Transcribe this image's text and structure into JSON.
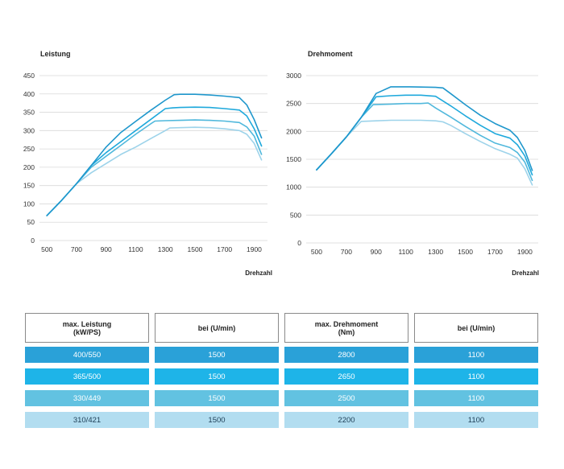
{
  "chart_data": [
    {
      "type": "line",
      "title": "Leistung",
      "xlabel": "Drehzahl",
      "ylabel": "",
      "xlim": [
        450,
        1990
      ],
      "ylim": [
        0,
        450
      ],
      "xticks": [
        500,
        700,
        900,
        1100,
        1300,
        1500,
        1700,
        1900
      ],
      "yticks": [
        0,
        50,
        100,
        150,
        200,
        250,
        300,
        350,
        400,
        450
      ],
      "grid": true,
      "series": [
        {
          "color": "#1f97cc",
          "x": [
            500,
            600,
            700,
            800,
            900,
            1000,
            1100,
            1200,
            1300,
            1360,
            1400,
            1500,
            1600,
            1700,
            1800,
            1850,
            1900,
            1950
          ],
          "y": [
            68,
            110,
            155,
            205,
            255,
            295,
            325,
            355,
            383,
            398,
            399,
            399,
            397,
            394,
            390,
            370,
            330,
            280
          ]
        },
        {
          "color": "#1fa9dc",
          "x": [
            500,
            600,
            700,
            800,
            900,
            1000,
            1100,
            1200,
            1300,
            1350,
            1400,
            1500,
            1600,
            1700,
            1800,
            1850,
            1900,
            1950
          ],
          "y": [
            68,
            110,
            155,
            205,
            240,
            270,
            300,
            330,
            360,
            362,
            363,
            364,
            363,
            360,
            356,
            340,
            305,
            258
          ]
        },
        {
          "color": "#50b8dc",
          "x": [
            500,
            600,
            700,
            800,
            900,
            1000,
            1100,
            1200,
            1230,
            1300,
            1400,
            1500,
            1600,
            1700,
            1800,
            1850,
            1900,
            1950
          ],
          "y": [
            68,
            110,
            155,
            200,
            230,
            260,
            290,
            318,
            326,
            327,
            328,
            329,
            328,
            326,
            322,
            310,
            285,
            235
          ]
        },
        {
          "color": "#9dd3ea",
          "x": [
            500,
            600,
            700,
            800,
            900,
            1000,
            1100,
            1200,
            1300,
            1330,
            1400,
            1500,
            1600,
            1700,
            1800,
            1850,
            1900,
            1950
          ],
          "y": [
            68,
            110,
            155,
            185,
            210,
            235,
            255,
            278,
            300,
            307,
            308,
            309,
            308,
            305,
            300,
            290,
            265,
            220
          ]
        }
      ]
    },
    {
      "type": "line",
      "title": "Drehmoment",
      "xlabel": "Drehzahl",
      "ylabel": "",
      "xlim": [
        430,
        1990
      ],
      "ylim": [
        0,
        3000
      ],
      "xticks": [
        500,
        700,
        900,
        1100,
        1300,
        1500,
        1700,
        1900
      ],
      "yticks": [
        0,
        500,
        1000,
        1500,
        2000,
        2500,
        3000
      ],
      "grid": true,
      "series": [
        {
          "color": "#1f97cc",
          "x": [
            500,
            600,
            700,
            800,
            900,
            1000,
            1100,
            1200,
            1300,
            1350,
            1400,
            1500,
            1600,
            1700,
            1800,
            1850,
            1900,
            1950
          ],
          "y": [
            1310,
            1600,
            1900,
            2250,
            2680,
            2800,
            2800,
            2795,
            2790,
            2780,
            2680,
            2480,
            2290,
            2140,
            2020,
            1890,
            1660,
            1300
          ]
        },
        {
          "color": "#1fa9dc",
          "x": [
            500,
            600,
            700,
            800,
            900,
            1000,
            1100,
            1200,
            1300,
            1400,
            1500,
            1600,
            1700,
            1800,
            1850,
            1900,
            1950
          ],
          "y": [
            1310,
            1600,
            1900,
            2250,
            2620,
            2640,
            2650,
            2650,
            2630,
            2460,
            2280,
            2110,
            1960,
            1880,
            1760,
            1560,
            1220
          ]
        },
        {
          "color": "#50b8dc",
          "x": [
            500,
            600,
            700,
            800,
            880,
            1000,
            1100,
            1200,
            1250,
            1300,
            1400,
            1500,
            1600,
            1700,
            1800,
            1850,
            1900,
            1950
          ],
          "y": [
            1310,
            1600,
            1900,
            2250,
            2480,
            2490,
            2500,
            2500,
            2510,
            2420,
            2260,
            2090,
            1930,
            1790,
            1710,
            1620,
            1450,
            1120
          ]
        },
        {
          "color": "#9dd3ea",
          "x": [
            500,
            600,
            700,
            800,
            900,
            1000,
            1100,
            1200,
            1300,
            1350,
            1400,
            1500,
            1600,
            1700,
            1800,
            1850,
            1900,
            1950
          ],
          "y": [
            1310,
            1600,
            1900,
            2180,
            2190,
            2200,
            2200,
            2200,
            2190,
            2170,
            2110,
            1960,
            1820,
            1690,
            1590,
            1520,
            1330,
            1040
          ]
        }
      ]
    }
  ],
  "table": {
    "headers": [
      "max. Leistung\n(kW/PS)",
      "bei (U/min)",
      "max. Drehmoment\n(Nm)",
      "bei (U/min)"
    ],
    "row_colors": [
      "#2aa1d8",
      "#1eb4e8",
      "#62c2e1",
      "#b2ddf0"
    ],
    "rows": [
      [
        "400/550",
        "1500",
        "2800",
        "1100"
      ],
      [
        "365/500",
        "1500",
        "2650",
        "1100"
      ],
      [
        "330/449",
        "1500",
        "2500",
        "1100"
      ],
      [
        "310/421",
        "1500",
        "2200",
        "1100"
      ]
    ]
  }
}
